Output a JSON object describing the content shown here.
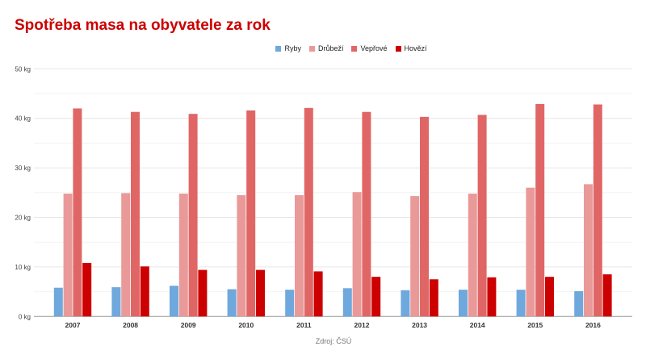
{
  "chart_data": {
    "type": "bar",
    "title": "Spotřeba masa na obyvatele za rok",
    "categories": [
      "2007",
      "2008",
      "2009",
      "2010",
      "2011",
      "2012",
      "2013",
      "2014",
      "2015",
      "2016"
    ],
    "series": [
      {
        "name": "Ryby",
        "color": "#6fa8dc",
        "values": [
          5.8,
          5.9,
          6.2,
          5.5,
          5.4,
          5.7,
          5.3,
          5.4,
          5.4,
          5.1
        ]
      },
      {
        "name": "Drůbeží",
        "color": "#ea9999",
        "values": [
          24.8,
          24.9,
          24.8,
          24.5,
          24.5,
          25.1,
          24.3,
          24.8,
          26.0,
          26.7
        ]
      },
      {
        "name": "Vepřové",
        "color": "#e06666",
        "values": [
          42.0,
          41.3,
          40.9,
          41.6,
          42.1,
          41.3,
          40.3,
          40.7,
          42.9,
          42.8
        ]
      },
      {
        "name": "Hovězí",
        "color": "#cc0000",
        "values": [
          10.8,
          10.1,
          9.4,
          9.4,
          9.1,
          8.0,
          7.5,
          7.9,
          8.0,
          8.5
        ]
      }
    ],
    "ylim": [
      0,
      50
    ],
    "yticks": [
      "0 kg",
      "10 kg",
      "20 kg",
      "30 kg",
      "40 kg",
      "50 kg"
    ],
    "grid": true,
    "legend_position": "top",
    "source": "Zdroj: ČSÚ"
  }
}
